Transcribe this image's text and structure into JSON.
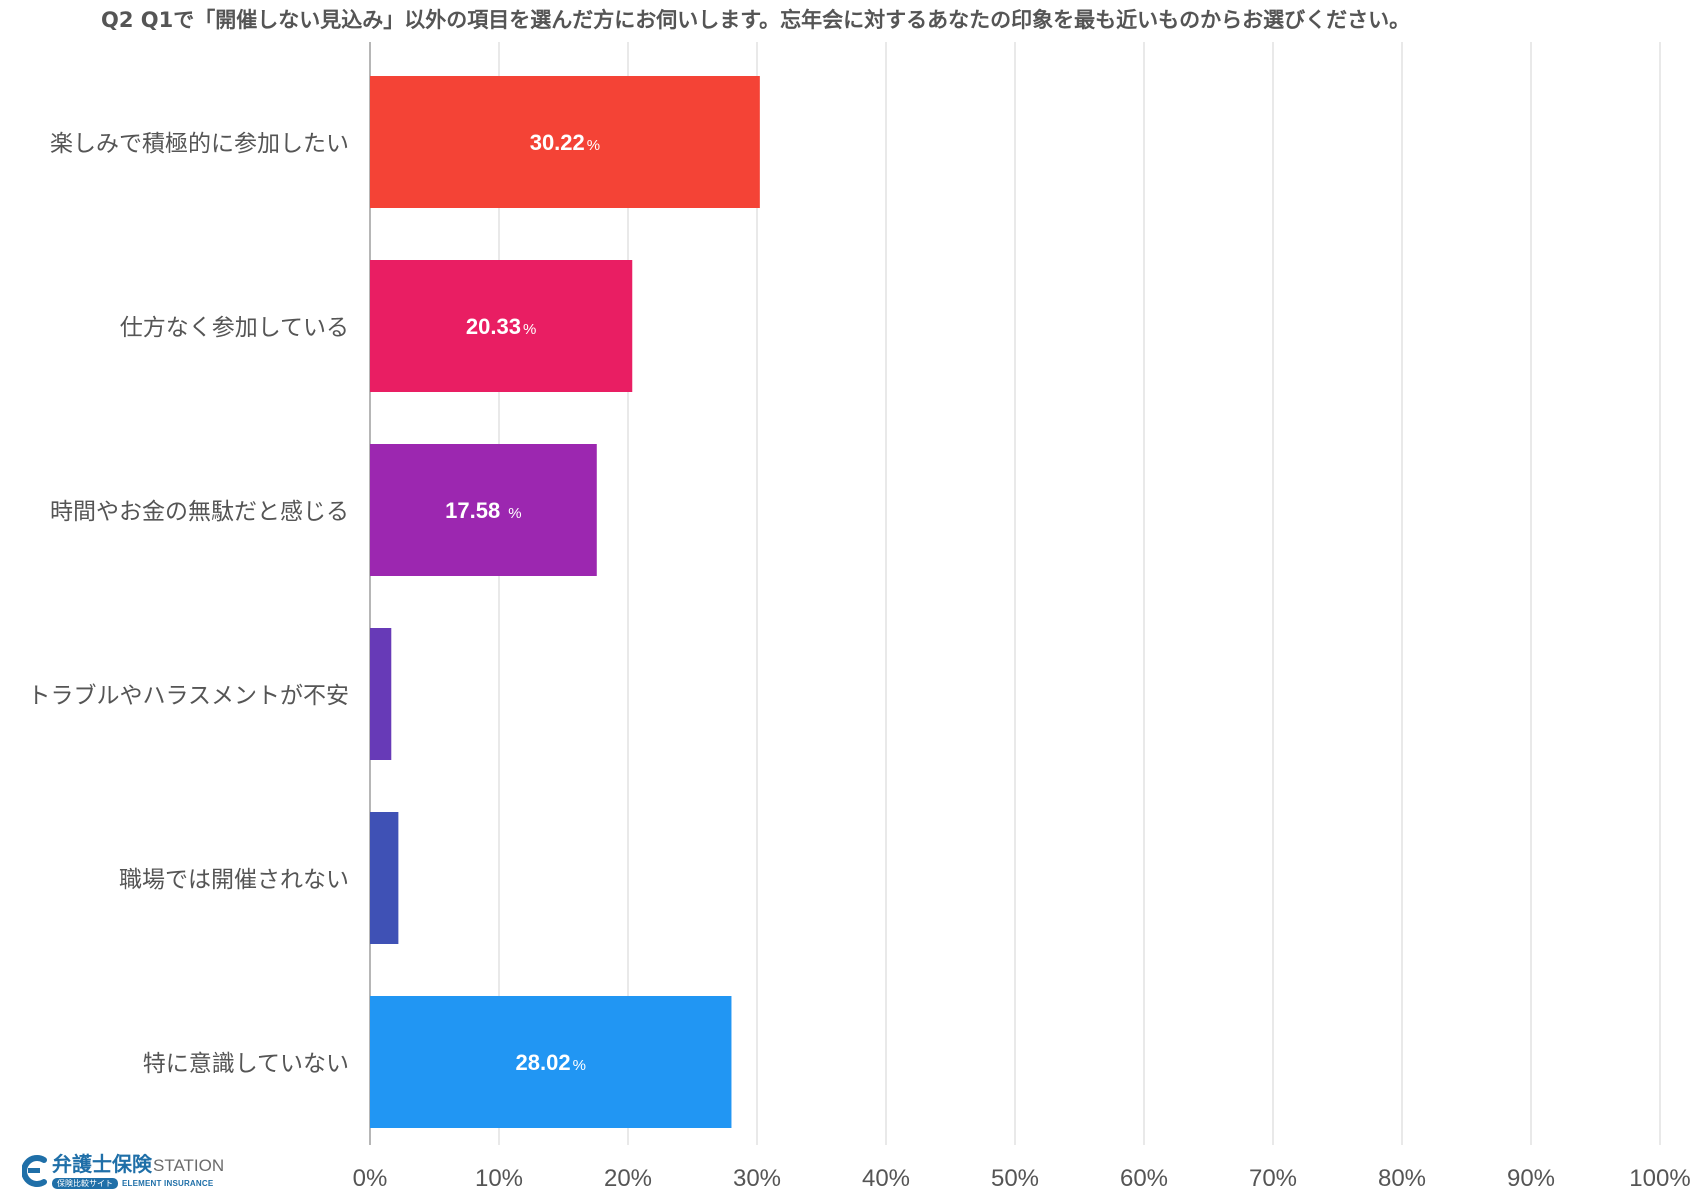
{
  "chart_data": {
    "type": "bar",
    "orientation": "horizontal",
    "title": "Q2 Q1で「開催しない見込み」以外の項目を選んだ方にお伺いします。忘年会に対するあなたの印象を最も近いものからお選びください。",
    "categories": [
      "楽しみで積極的に参加したい",
      "仕方なく参加している",
      "時間やお金の無駄だと感じる",
      "トラブルやハラスメントが不安",
      "職場では開催されない",
      "特に意識していない"
    ],
    "values": [
      30.22,
      20.33,
      17.58,
      1.65,
      2.2,
      28.02
    ],
    "value_labels": [
      "30.22",
      "20.33",
      "17.58 ",
      "",
      "",
      "28.02"
    ],
    "percent_sign": "%",
    "colors": [
      "#f44336",
      "#e91e63",
      "#9c27b0",
      "#673ab7",
      "#3f51b5",
      "#2196f3"
    ],
    "xlim": [
      0,
      100
    ],
    "ticks": [
      "0%",
      "10%",
      "20%",
      "30%",
      "40%",
      "50%",
      "60%",
      "70%",
      "80%",
      "90%",
      "100%"
    ],
    "grid": true,
    "xlabel": "",
    "ylabel": ""
  },
  "logo": {
    "jp": "弁護士保険",
    "en": "STATION",
    "tag": "保険比較サイト",
    "sub": "ELEMENT INSURANCE",
    "color": "#1f6fa8"
  }
}
